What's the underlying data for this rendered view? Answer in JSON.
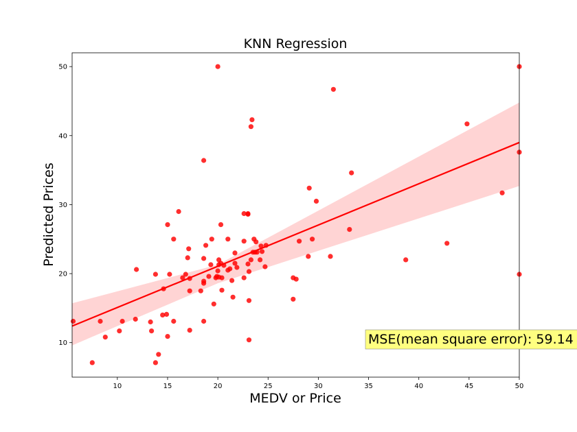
{
  "chart_data": {
    "type": "scatter",
    "title": "KNN Regression",
    "xlabel": "MEDV or Price",
    "ylabel": "Predicted Prices",
    "xlim": [
      5.5,
      50
    ],
    "ylim": [
      5,
      52
    ],
    "xticks": [
      10,
      15,
      20,
      25,
      30,
      35,
      40,
      45,
      50
    ],
    "yticks": [
      10,
      20,
      30,
      40,
      50
    ],
    "grid": false,
    "colors": {
      "points": "#ff0000",
      "line": "#ff0000",
      "band": "#ffcccc",
      "annotation_bg": "#ffff80"
    },
    "annotation": "MSE(mean square error): 59.14",
    "regression_line": {
      "x": [
        5.5,
        50
      ],
      "y": [
        12.4,
        39.0
      ]
    },
    "confidence_band": {
      "x": [
        5.5,
        20,
        50
      ],
      "lower": [
        9.6,
        18.6,
        32.7
      ],
      "upper": [
        15.7,
        21.3,
        44.8
      ]
    },
    "points": [
      [
        5.6,
        13.1
      ],
      [
        7.5,
        7.1
      ],
      [
        8.3,
        13.1
      ],
      [
        8.8,
        10.8
      ],
      [
        10.2,
        11.7
      ],
      [
        10.5,
        13.1
      ],
      [
        11.8,
        13.4
      ],
      [
        11.9,
        20.6
      ],
      [
        13.3,
        13.0
      ],
      [
        13.4,
        11.7
      ],
      [
        13.8,
        7.1
      ],
      [
        13.8,
        19.9
      ],
      [
        14.1,
        8.3
      ],
      [
        14.5,
        14.0
      ],
      [
        14.6,
        17.8
      ],
      [
        14.9,
        14.1
      ],
      [
        15.0,
        10.9
      ],
      [
        15.0,
        27.1
      ],
      [
        15.2,
        19.9
      ],
      [
        15.6,
        13.1
      ],
      [
        15.6,
        25.0
      ],
      [
        16.1,
        29.0
      ],
      [
        16.5,
        19.4
      ],
      [
        16.8,
        19.9
      ],
      [
        17.0,
        22.3
      ],
      [
        17.1,
        23.6
      ],
      [
        17.2,
        19.3
      ],
      [
        17.2,
        17.5
      ],
      [
        17.2,
        11.8
      ],
      [
        18.3,
        17.5
      ],
      [
        18.6,
        13.1
      ],
      [
        18.6,
        18.6
      ],
      [
        18.6,
        18.9
      ],
      [
        18.6,
        22.2
      ],
      [
        18.6,
        36.4
      ],
      [
        18.8,
        24.1
      ],
      [
        19.1,
        19.6
      ],
      [
        19.3,
        21.3
      ],
      [
        19.4,
        25.0
      ],
      [
        19.6,
        15.6
      ],
      [
        19.8,
        19.4
      ],
      [
        19.9,
        19.6
      ],
      [
        20.0,
        20.4
      ],
      [
        20.0,
        50.0
      ],
      [
        20.1,
        21.3
      ],
      [
        20.1,
        22.0
      ],
      [
        20.1,
        19.5
      ],
      [
        20.3,
        27.1
      ],
      [
        20.3,
        21.5
      ],
      [
        20.4,
        19.4
      ],
      [
        20.4,
        17.6
      ],
      [
        20.6,
        21.2
      ],
      [
        21.0,
        20.5
      ],
      [
        21.0,
        25.0
      ],
      [
        21.2,
        20.7
      ],
      [
        21.4,
        19.0
      ],
      [
        21.5,
        16.6
      ],
      [
        21.7,
        21.5
      ],
      [
        21.7,
        23.0
      ],
      [
        21.9,
        20.9
      ],
      [
        22.6,
        19.4
      ],
      [
        22.6,
        24.7
      ],
      [
        22.6,
        28.7
      ],
      [
        23.0,
        28.7
      ],
      [
        23.0,
        28.6
      ],
      [
        23.0,
        21.4
      ],
      [
        23.1,
        20.3
      ],
      [
        23.1,
        16.1
      ],
      [
        23.1,
        10.4
      ],
      [
        23.3,
        22.0
      ],
      [
        23.3,
        41.3
      ],
      [
        23.4,
        42.3
      ],
      [
        23.5,
        23.1
      ],
      [
        23.6,
        25.0
      ],
      [
        23.7,
        23.1
      ],
      [
        23.8,
        24.6
      ],
      [
        23.9,
        23.1
      ],
      [
        24.2,
        22.0
      ],
      [
        24.3,
        24.0
      ],
      [
        24.4,
        23.2
      ],
      [
        24.7,
        21.0
      ],
      [
        24.8,
        24.1
      ],
      [
        27.5,
        19.4
      ],
      [
        27.5,
        16.3
      ],
      [
        27.8,
        19.2
      ],
      [
        28.1,
        24.7
      ],
      [
        29.0,
        22.5
      ],
      [
        29.1,
        32.4
      ],
      [
        29.4,
        25.0
      ],
      [
        29.8,
        30.5
      ],
      [
        31.2,
        22.5
      ],
      [
        31.5,
        46.7
      ],
      [
        33.1,
        26.4
      ],
      [
        33.3,
        34.6
      ],
      [
        38.7,
        22.0
      ],
      [
        42.8,
        24.4
      ],
      [
        44.8,
        41.7
      ],
      [
        48.3,
        31.7
      ],
      [
        50.0,
        50.0
      ],
      [
        50.0,
        37.6
      ],
      [
        50.0,
        19.9
      ]
    ]
  }
}
